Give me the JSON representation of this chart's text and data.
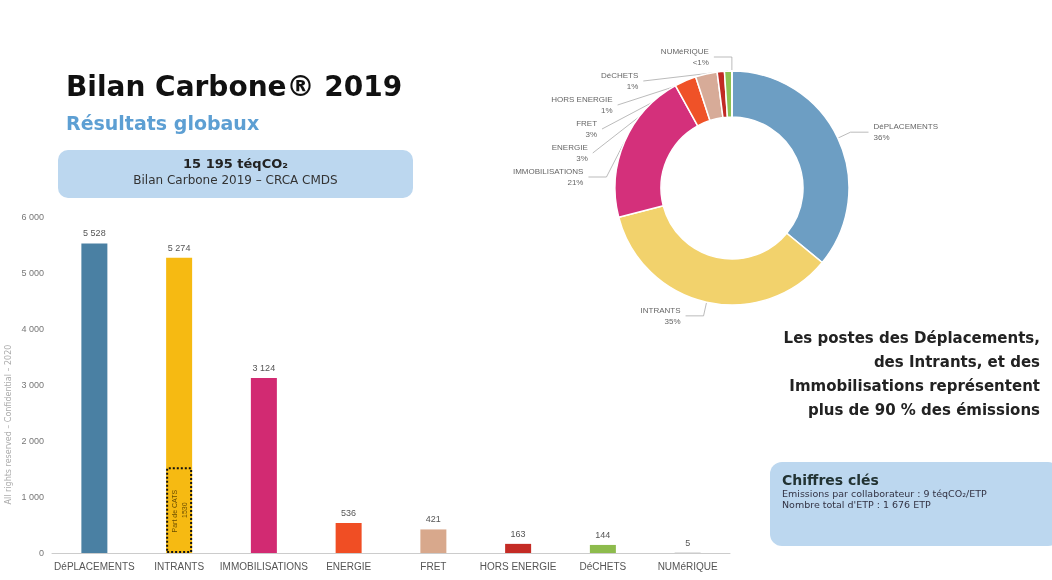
{
  "chart_data": [
    {
      "type": "bar",
      "title": "Bilan Carbone® 2019",
      "subtitle": "Résultats globaux",
      "annotations": [
        "15 195 téqCO₂",
        "Bilan Carbone 2019 – CRCA CMDS",
        "All rights reserved – Confidential – 2020"
      ],
      "categories": [
        "DéPLACEMENTS",
        "INTRANTS",
        "IMMOBILISATIONS",
        "ENERGIE",
        "FRET",
        "HORS ENERGIE",
        "DéCHETS",
        "NUMéRIQUE"
      ],
      "series": [
        {
          "values": [
            5528,
            5274,
            3124,
            536,
            421,
            163,
            144,
            5
          ],
          "value_labels": [
            "5 528",
            "5 274",
            "3 124",
            "536",
            "421",
            "163",
            "144",
            "5"
          ],
          "colors": [
            "#4a80a3",
            "#f6ba12",
            "#d22a72",
            "#f04e24",
            "#d8a88c",
            "#c42b25",
            "#8dbb4c",
            "#9a9a9a"
          ]
        },
        {
          "values": [
            null,
            1530,
            null,
            null,
            null,
            null,
            null,
            null
          ],
          "value_labels": [
            null,
            "Part de CATS 1530",
            null,
            null,
            null,
            null,
            null,
            null
          ],
          "color": "#111111"
        }
      ],
      "ylim": [
        0,
        6000
      ],
      "yticks": [
        {
          "value": 0,
          "label": "0"
        },
        {
          "value": 1000,
          "label": "1 000"
        },
        {
          "value": 2000,
          "label": "2 000"
        },
        {
          "value": 3000,
          "label": "3 000"
        },
        {
          "value": 4000,
          "label": "4 000"
        },
        {
          "value": 5000,
          "label": "5 000"
        },
        {
          "value": 6000,
          "label": "6 000"
        }
      ],
      "grid": false,
      "legend": false
    },
    {
      "type": "donut",
      "categories": [
        "DéPLACEMENTS",
        "INTRANTS",
        "IMMOBILISATIONS",
        "ENERGIE",
        "FRET",
        "HORS ENERGIE",
        "DéCHETS",
        "NUMéRIQUE"
      ],
      "values": [
        36,
        35,
        21,
        3,
        3,
        1,
        1,
        0.03
      ],
      "value_labels": [
        "36%",
        "35%",
        "21%",
        "3%",
        "3%",
        "1%",
        "1%",
        "<1%"
      ],
      "colors": [
        "#6d9ec3",
        "#f2d26c",
        "#d4307b",
        "#ef5228",
        "#d7ab98",
        "#c12a24",
        "#8cc152",
        "#bdbdbd"
      ],
      "annotations": [
        "Les postes des Déplacements, des Intrants, et des Immobilisations représentent plus de 90 % des émissions",
        "Chiffres clés",
        "Emissions par collaborateur : 9 téqCO₂/ETP",
        "Nombre total d'ETP : 1 676 ETP"
      ],
      "legend": false
    }
  ]
}
